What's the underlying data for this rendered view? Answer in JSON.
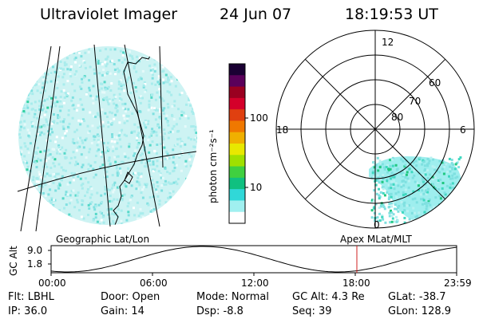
{
  "header": {
    "instrument": "Ultraviolet Imager",
    "date": "24 Jun 07",
    "time": "18:19:53 UT"
  },
  "colorbar": {
    "unit_label": "photon cm⁻²s⁻¹",
    "ticks": [
      "100",
      "10"
    ],
    "colors": [
      "#1a0033",
      "#5a005a",
      "#9a0020",
      "#d4002a",
      "#e04010",
      "#f07800",
      "#f0b000",
      "#e8e800",
      "#a0e000",
      "#40d040",
      "#10c080",
      "#30d8d8",
      "#a0f0f0",
      "#ffffff"
    ]
  },
  "left_panel": {
    "label": "Geographic Lat/Lon"
  },
  "right_panel": {
    "label": "Apex MLat/MLT",
    "mlt_labels": {
      "top": "12",
      "left": "18",
      "right": "6",
      "bottom": "0"
    },
    "lat_labels": [
      "60",
      "70",
      "80"
    ]
  },
  "altitude_strip": {
    "axis_title": "GC Alt",
    "y_ticks": [
      "9.0",
      "1.8"
    ],
    "x_ticks": [
      "00:00",
      "06:00",
      "12:00",
      "18:00",
      "23:59"
    ],
    "current_marker_time": "18:19:53"
  },
  "info": {
    "flt": "Flt: LBHL",
    "ip": "IP: 36.0",
    "door": "Door: Open",
    "gain": "Gain: 14",
    "mode": "Mode: Normal",
    "dsp": "Dsp:    -8.8",
    "gc_alt": "GC Alt: 4.3 Re",
    "seq": "Seq: 39",
    "glat": "GLat: -38.7",
    "glon": "GLon: 128.9"
  }
}
